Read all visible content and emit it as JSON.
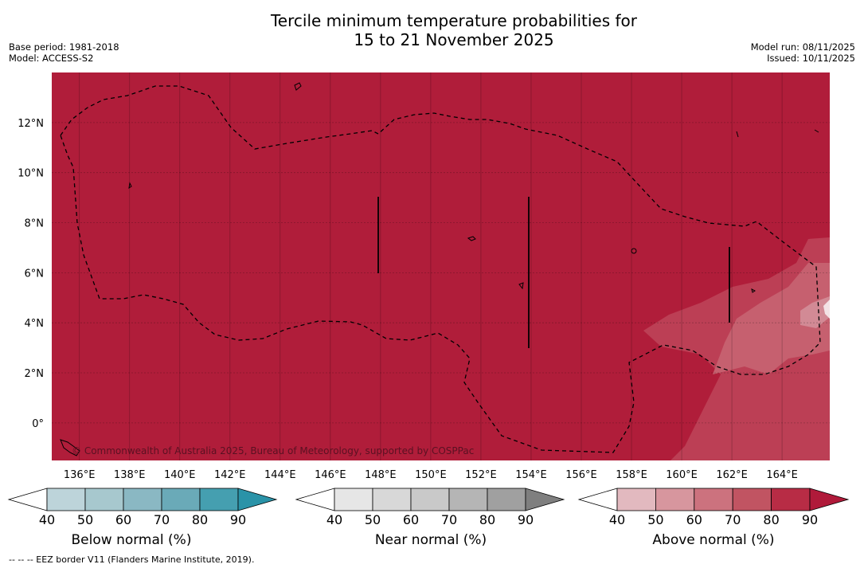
{
  "title_line1": "Tercile minimum temperature probabilities for",
  "title_line2": "15 to 21 November 2025",
  "base_period": "Base period: 1981-2018",
  "model": "Model: ACCESS-S2",
  "model_run": "Model run: 08/11/2025",
  "issued": "Issued: 10/11/2025",
  "copyright": "© Commonwealth of Australia 2025, Bureau of Meteorology, supported by COSPPac",
  "footnote": "--  --  -- EEZ border V11 (Flanders Marine Institute, 2019).",
  "map": {
    "lon_range": [
      134.9,
      165.9
    ],
    "lat_range": [
      -1.5,
      14.0
    ],
    "lon_ticks": [
      136,
      138,
      140,
      142,
      144,
      146,
      148,
      150,
      152,
      154,
      156,
      158,
      160,
      162,
      164
    ],
    "lon_tick_labels": [
      "136°E",
      "138°E",
      "140°E",
      "142°E",
      "144°E",
      "146°E",
      "148°E",
      "150°E",
      "152°E",
      "154°E",
      "156°E",
      "158°E",
      "160°E",
      "162°E",
      "164°E"
    ],
    "lat_ticks": [
      0,
      2,
      4,
      6,
      8,
      10,
      12
    ],
    "lat_tick_labels": [
      "0°",
      "2°N",
      "4°N",
      "6°N",
      "8°N",
      "10°N",
      "12°N"
    ],
    "background_category": "Above normal 80-90%"
  },
  "colorbars": [
    {
      "name": "below-normal",
      "label": "Below normal (%)",
      "ticks": [
        "40",
        "50",
        "60",
        "70",
        "80",
        "90"
      ],
      "colors": [
        "#ffffff",
        "#bdd4da",
        "#a7c8ce",
        "#8ab8c3",
        "#6aaab8",
        "#459fb0",
        "#2a93a8"
      ]
    },
    {
      "name": "near-normal",
      "label": "Near normal (%)",
      "ticks": [
        "40",
        "50",
        "60",
        "70",
        "80",
        "90"
      ],
      "colors": [
        "#ffffff",
        "#e6e6e6",
        "#d8d8d8",
        "#c9c9c9",
        "#b5b5b5",
        "#a0a0a0",
        "#7f7f7f"
      ]
    },
    {
      "name": "above-normal",
      "label": "Above normal (%)",
      "ticks": [
        "40",
        "50",
        "60",
        "70",
        "80",
        "90"
      ],
      "colors": [
        "#ffffff",
        "#e2b9bf",
        "#d7969e",
        "#cc727e",
        "#c15462",
        "#b82c45",
        "#b01a3a"
      ]
    }
  ]
}
